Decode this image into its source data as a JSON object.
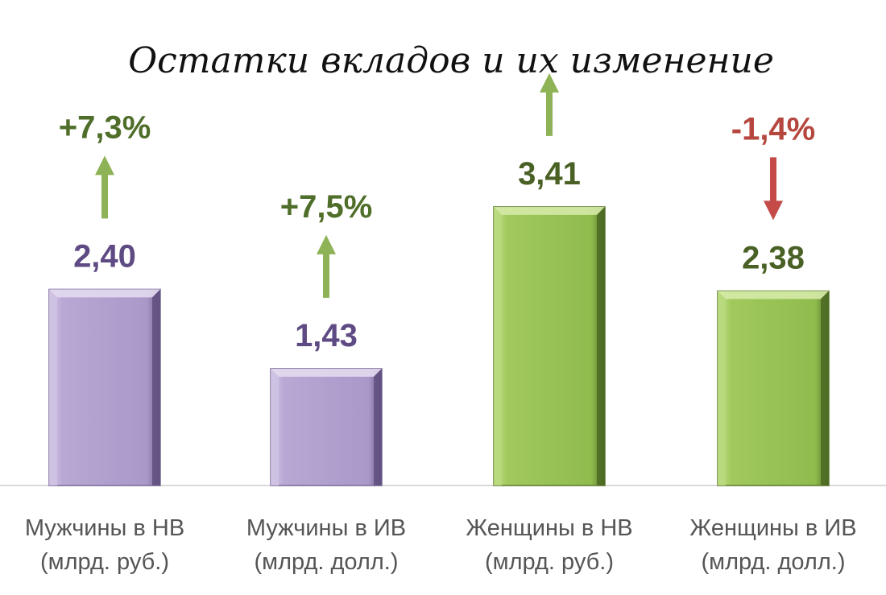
{
  "chart_data": {
    "type": "bar",
    "title": "Остатки вкладов и их изменение",
    "categories": [
      [
        "Мужчины в НВ",
        "(млрд. руб.)"
      ],
      [
        "Мужчины в ИВ",
        "(млрд. долл.)"
      ],
      [
        "Женщины в НВ",
        "(млрд. руб.)"
      ],
      [
        "Женщины в ИВ",
        "(млрд. долл.)"
      ]
    ],
    "values": [
      2.4,
      1.43,
      3.41,
      2.38
    ],
    "value_labels": [
      "2,40",
      "1,43",
      "3,41",
      "2,38"
    ],
    "changes": [
      "+7,3%",
      "+7,5%",
      "",
      "-1,4%"
    ],
    "change_direction": [
      "up",
      "up",
      "up",
      "down"
    ],
    "ylim": [
      0,
      4
    ],
    "grid": false,
    "colors": {
      "men": "#b3a2cf",
      "women": "#98c157",
      "men_label": "#5f4b84",
      "women_label": "#4a6126",
      "change_up": "#4f6e2a",
      "change_down": "#b5473e",
      "arrow_up": "#8db356",
      "arrow_down": "#c44b48",
      "axis": "#d9d9d9"
    }
  }
}
